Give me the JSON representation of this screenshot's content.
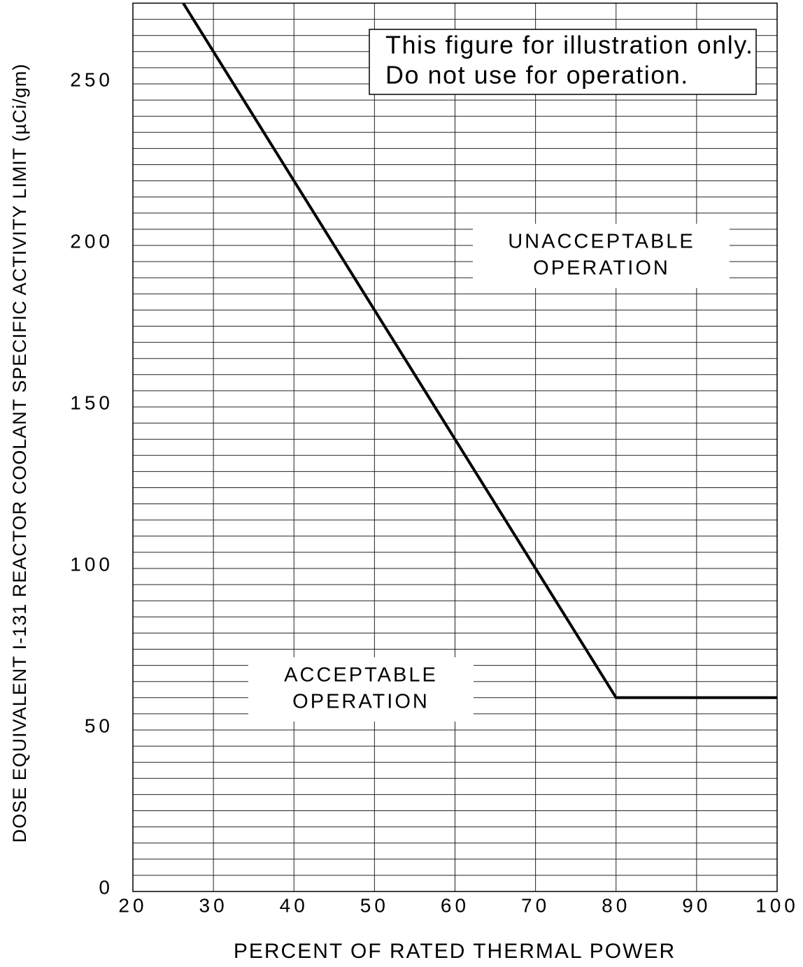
{
  "chart_data": {
    "type": "line",
    "xlabel": "PERCENT OF RATED THERMAL POWER",
    "ylabel": "DOSE EQUIVALENT I-131 REACTOR COOLANT SPECIFIC ACTIVITY LIMIT (µCi/gm)",
    "x": [
      26.25,
      80,
      100
    ],
    "values": [
      275,
      60,
      60
    ],
    "color": "#000000",
    "xlim": [
      20,
      100
    ],
    "ylim": [
      0,
      275
    ],
    "xticks": [
      20,
      30,
      40,
      50,
      60,
      70,
      80,
      90,
      100
    ],
    "yticks": [
      0,
      50,
      100,
      150,
      200,
      250
    ],
    "y_minor_ticks": [
      5,
      10,
      15,
      20,
      25,
      30,
      35,
      40,
      45,
      55,
      60,
      65,
      70,
      75,
      80,
      85,
      90,
      95,
      105,
      110,
      115,
      120,
      125,
      130,
      135,
      140,
      145,
      155,
      160,
      165,
      170,
      175,
      180,
      185,
      190,
      195,
      205,
      210,
      215,
      220,
      225,
      230,
      235,
      240,
      245,
      255,
      260,
      265,
      270
    ],
    "grid": true,
    "annotations": [
      {
        "lines": [
          "This figure for illustration only.",
          "Do not use for operation."
        ]
      },
      {
        "lines": [
          "UNACCEPTABLE",
          "OPERATION"
        ]
      },
      {
        "lines": [
          "ACCEPTABLE",
          "OPERATION"
        ]
      }
    ]
  }
}
